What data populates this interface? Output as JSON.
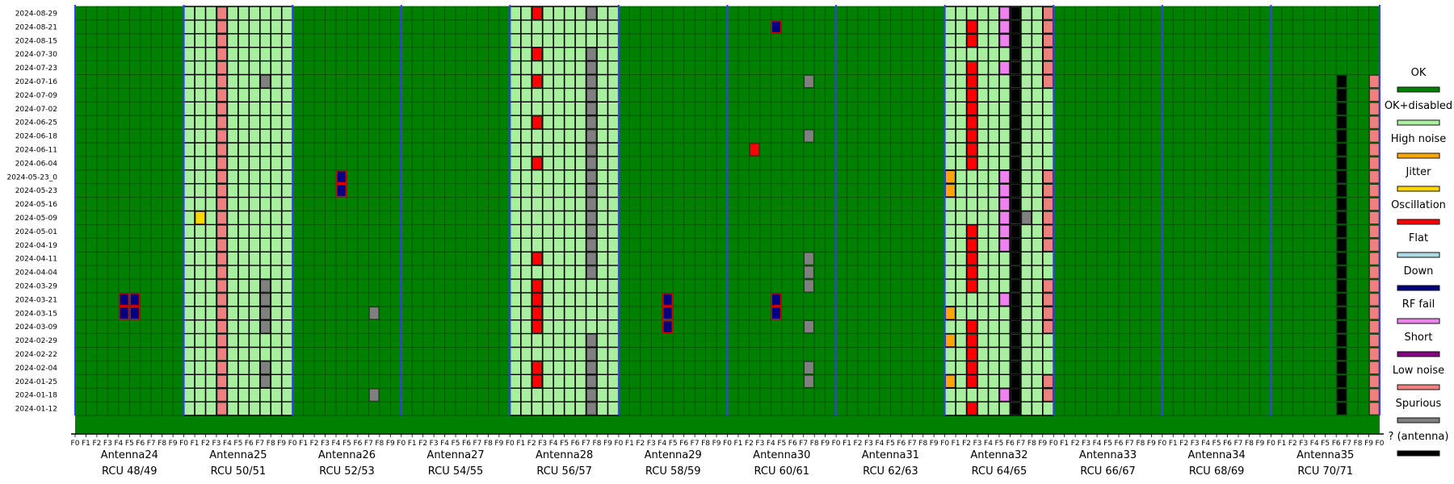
{
  "chart_data": {
    "type": "heatmap",
    "title": "",
    "xlabel": "",
    "ylabel": "",
    "grid": true,
    "legend_position": "right",
    "dates": [
      "2024-08-29",
      "2024-08-21",
      "2024-08-15",
      "2024-07-30",
      "2024-07-23",
      "2024-07-16",
      "2024-07-09",
      "2024-07-02",
      "2024-06-25",
      "2024-06-18",
      "2024-06-11",
      "2024-06-04",
      "2024-05-23_0",
      "2024-05-23",
      "2024-05-16",
      "2024-05-09",
      "2024-05-01",
      "2024-04-19",
      "2024-04-11",
      "2024-04-04",
      "2024-03-29",
      "2024-03-21",
      "2024-03-15",
      "2024-03-09",
      "2024-02-29",
      "2024-02-22",
      "2024-02-04",
      "2024-01-25",
      "2024-01-18",
      "2024-01-12"
    ],
    "date_labels": [
      "2024-08-29",
      "2024-08-21",
      "2024-08-15",
      "2024-07-30",
      "2024-07-23",
      "2024-07-16",
      "2024-07-09",
      "2024-07-02",
      "2024-06-25",
      "2024-06-18",
      "2024-06-11",
      "2024-06-04",
      "2024-05-23_0",
      "2024-05-23",
      "2024-05-16",
      "2024-05-09",
      "2024-05-01",
      "2024-04-19",
      "2024-04-11",
      "2024-04-04",
      "2024-03-29",
      "2024-03-21",
      "2024-03-15",
      "2024-03-09",
      "2024-02-29",
      "2024-02-22",
      "2024-02-04",
      "2024-01-25",
      "2024-01-18",
      "2024-01-12"
    ],
    "channel_ticks": [
      "F0",
      "F1",
      "F2",
      "F3",
      "F4",
      "F5",
      "F6",
      "F7",
      "F8",
      "F9"
    ],
    "final_tick": "F0",
    "antennas": [
      {
        "name": "Antenna24",
        "rcu": "RCU 48/49",
        "disabled": false
      },
      {
        "name": "Antenna25",
        "rcu": "RCU 50/51",
        "disabled": true
      },
      {
        "name": "Antenna26",
        "rcu": "RCU 52/53",
        "disabled": false
      },
      {
        "name": "Antenna27",
        "rcu": "RCU 54/55",
        "disabled": false
      },
      {
        "name": "Antenna28",
        "rcu": "RCU 56/57",
        "disabled": true
      },
      {
        "name": "Antenna29",
        "rcu": "RCU 58/59",
        "disabled": false
      },
      {
        "name": "Antenna30",
        "rcu": "RCU 60/61",
        "disabled": false
      },
      {
        "name": "Antenna31",
        "rcu": "RCU 62/63",
        "disabled": false
      },
      {
        "name": "Antenna32",
        "rcu": "RCU 64/65",
        "disabled": true
      },
      {
        "name": "Antenna33",
        "rcu": "RCU 66/67",
        "disabled": false
      },
      {
        "name": "Antenna34",
        "rcu": "RCU 68/69",
        "disabled": false
      },
      {
        "name": "Antenna35",
        "rcu": "RCU 70/71",
        "disabled": false
      }
    ],
    "legend": [
      {
        "label": "OK",
        "color": "#008000"
      },
      {
        "label": "OK+disabled",
        "color": "#a8f0a0"
      },
      {
        "label": "High noise",
        "color": "#ffa500"
      },
      {
        "label": "Jitter",
        "color": "#ffd700"
      },
      {
        "label": "Oscillation",
        "color": "#ff0000"
      },
      {
        "label": "Flat",
        "color": "#add8e6"
      },
      {
        "label": "Down",
        "color": "#000080"
      },
      {
        "label": "RF fail",
        "color": "#ee82ee"
      },
      {
        "label": "Short",
        "color": "#800080"
      },
      {
        "label": "Low noise",
        "color": "#f08080"
      },
      {
        "label": "Spurious",
        "color": "#808080"
      },
      {
        "label": "? (antenna)",
        "color": "#000000"
      }
    ],
    "anomalies": [
      {
        "antenna": 0,
        "f0": 4,
        "f1": 5,
        "rows": [
          21,
          22
        ],
        "status": "Down"
      },
      {
        "antenna": 1,
        "f0": 3,
        "f1": 3,
        "rows": "all",
        "status": "Low noise"
      },
      {
        "antenna": 1,
        "f0": 7,
        "f1": 7,
        "rows": [
          5
        ],
        "status": "Spurious"
      },
      {
        "antenna": 1,
        "f0": 7,
        "f1": 7,
        "rows": [
          20,
          21,
          22,
          23
        ],
        "status": "Spurious"
      },
      {
        "antenna": 1,
        "f0": 7,
        "f1": 7,
        "rows": [
          26,
          27
        ],
        "status": "Spurious"
      },
      {
        "antenna": 1,
        "f0": 1,
        "f1": 1,
        "rows": [
          15
        ],
        "status": "Jitter"
      },
      {
        "antenna": 2,
        "f0": 4,
        "f1": 4,
        "rows": [
          12,
          13
        ],
        "status": "Down"
      },
      {
        "antenna": 2,
        "f0": 7,
        "f1": 7,
        "rows": [
          22
        ],
        "status": "Spurious"
      },
      {
        "antenna": 2,
        "f0": 7,
        "f1": 7,
        "rows": [
          28
        ],
        "status": "Spurious"
      },
      {
        "antenna": 4,
        "f0": 2,
        "f1": 2,
        "rows": [
          0,
          3,
          5,
          8,
          11,
          18,
          20,
          27
        ],
        "status": "Oscillation"
      },
      {
        "antenna": 4,
        "f0": 2,
        "f1": 2,
        "rows": [
          21,
          22,
          23,
          26
        ],
        "status": "Oscillation"
      },
      {
        "antenna": 4,
        "f0": 7,
        "f1": 7,
        "rows": [
          0,
          3,
          4,
          5,
          6,
          7,
          8,
          9,
          10,
          11,
          12,
          13,
          14,
          15,
          16,
          17,
          18,
          19,
          24,
          25,
          26,
          27,
          28,
          29
        ],
        "status": "Spurious"
      },
      {
        "antenna": 5,
        "f0": 4,
        "f1": 4,
        "rows": [
          21,
          22,
          23
        ],
        "status": "Down"
      },
      {
        "antenna": 6,
        "f0": 4,
        "f1": 4,
        "rows": [
          1
        ],
        "status": "Down"
      },
      {
        "antenna": 6,
        "f0": 4,
        "f1": 4,
        "rows": [
          21,
          22
        ],
        "status": "Down"
      },
      {
        "antenna": 6,
        "f0": 2,
        "f1": 2,
        "rows": [
          10
        ],
        "status": "Oscillation"
      },
      {
        "antenna": 6,
        "f0": 7,
        "f1": 7,
        "rows": [
          5,
          9,
          18,
          19,
          20,
          23,
          26,
          27
        ],
        "status": "Spurious"
      },
      {
        "antenna": 8,
        "f0": 2,
        "f1": 2,
        "rows": [
          1,
          2,
          4,
          5,
          6,
          7,
          8,
          9,
          10,
          11,
          16,
          17,
          18,
          19,
          20,
          23,
          24,
          25,
          26,
          27,
          29
        ],
        "status": "Oscillation"
      },
      {
        "antenna": 8,
        "f0": 5,
        "f1": 5,
        "rows": [
          0,
          1,
          2,
          4,
          12,
          13,
          14,
          15,
          16,
          17,
          21,
          28
        ],
        "status": "RF fail"
      },
      {
        "antenna": 8,
        "f0": 6,
        "f1": 6,
        "rows": "all",
        "status": "? (antenna)"
      },
      {
        "antenna": 8,
        "f0": 9,
        "f1": 9,
        "rows": [
          0,
          1,
          2,
          3,
          4,
          5,
          12,
          13,
          14,
          15,
          16,
          17,
          20,
          21,
          22,
          23,
          27,
          28
        ],
        "status": "Low noise"
      },
      {
        "antenna": 8,
        "f0": 0,
        "f1": 0,
        "rows": [
          12,
          13,
          22,
          24,
          27
        ],
        "status": "High noise"
      },
      {
        "antenna": 8,
        "f0": 7,
        "f1": 7,
        "rows": [
          15
        ],
        "status": "Spurious"
      },
      {
        "antenna": 11,
        "f0": 6,
        "f1": 6,
        "rows": [
          5,
          6,
          7,
          8,
          9,
          10,
          11,
          12,
          13,
          14,
          15,
          16,
          17,
          18,
          19,
          20,
          21,
          22,
          23,
          24,
          25,
          26,
          27,
          28,
          29
        ],
        "status": "? (antenna)"
      },
      {
        "antenna": 11,
        "f0": 9,
        "f1": 9,
        "rows": [
          5,
          6,
          7,
          8,
          9,
          10,
          11,
          12,
          13,
          14,
          15,
          16,
          17,
          18,
          19,
          20,
          21,
          22,
          23,
          24,
          25,
          26,
          27,
          28,
          29
        ],
        "status": "Low noise"
      }
    ]
  }
}
